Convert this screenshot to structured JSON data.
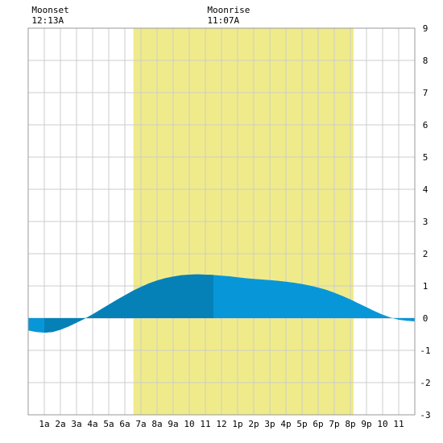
{
  "chart_data": {
    "type": "area",
    "title": "",
    "xlabel": "",
    "ylabel": "",
    "xlim": [
      0,
      24
    ],
    "ylim": [
      -3,
      9
    ],
    "grid": true,
    "x_tick_labels": [
      "1a",
      "2a",
      "3a",
      "4a",
      "5a",
      "6a",
      "7a",
      "8a",
      "9a",
      "10",
      "11",
      "12",
      "1p",
      "2p",
      "3p",
      "4p",
      "5p",
      "6p",
      "7p",
      "8p",
      "9p",
      "10",
      "11"
    ],
    "y_tick_labels": [
      "9",
      "8",
      "7",
      "6",
      "5",
      "4",
      "3",
      "2",
      "1",
      "0",
      "-1",
      "-2",
      "-3"
    ],
    "y_ticks": [
      9,
      8,
      7,
      6,
      5,
      4,
      3,
      2,
      1,
      0,
      -1,
      -2,
      -3
    ],
    "daylight": {
      "start": 6.53,
      "end": 20.2
    },
    "moon_events": [
      {
        "label": "Moonset",
        "time": "12:13A",
        "x": 0.22
      },
      {
        "label": "Moonrise",
        "time": "11:07A",
        "x": 11.12
      }
    ],
    "tide_series": {
      "x": [
        0,
        0.5,
        1,
        1.5,
        2,
        2.5,
        3,
        3.5,
        4,
        4.5,
        5,
        5.5,
        6,
        6.5,
        7,
        7.5,
        8,
        8.5,
        9,
        9.5,
        10,
        10.5,
        11,
        11.5,
        12,
        12.5,
        13,
        13.5,
        14,
        14.5,
        15,
        15.5,
        16,
        16.5,
        17,
        17.5,
        18,
        18.5,
        19,
        19.5,
        20,
        20.5,
        21,
        21.5,
        22,
        22.5,
        23,
        23.5,
        24
      ],
      "y": [
        -0.38,
        -0.43,
        -0.45,
        -0.43,
        -0.36,
        -0.26,
        -0.14,
        -0.02,
        0.12,
        0.27,
        0.42,
        0.57,
        0.71,
        0.85,
        0.97,
        1.08,
        1.17,
        1.24,
        1.29,
        1.33,
        1.35,
        1.36,
        1.35,
        1.34,
        1.32,
        1.3,
        1.27,
        1.24,
        1.22,
        1.2,
        1.18,
        1.16,
        1.13,
        1.1,
        1.06,
        1.01,
        0.95,
        0.88,
        0.79,
        0.69,
        0.58,
        0.46,
        0.34,
        0.22,
        0.11,
        0.02,
        -0.05,
        -0.08,
        -0.1
      ],
      "highlight_range": [
        1,
        11.5
      ]
    },
    "colors": {
      "daylight": "#f0eb8a",
      "tide": "#0797d8",
      "tide_highlight": "#0681b8",
      "grid": "#cccccc",
      "border": "#999999"
    }
  }
}
